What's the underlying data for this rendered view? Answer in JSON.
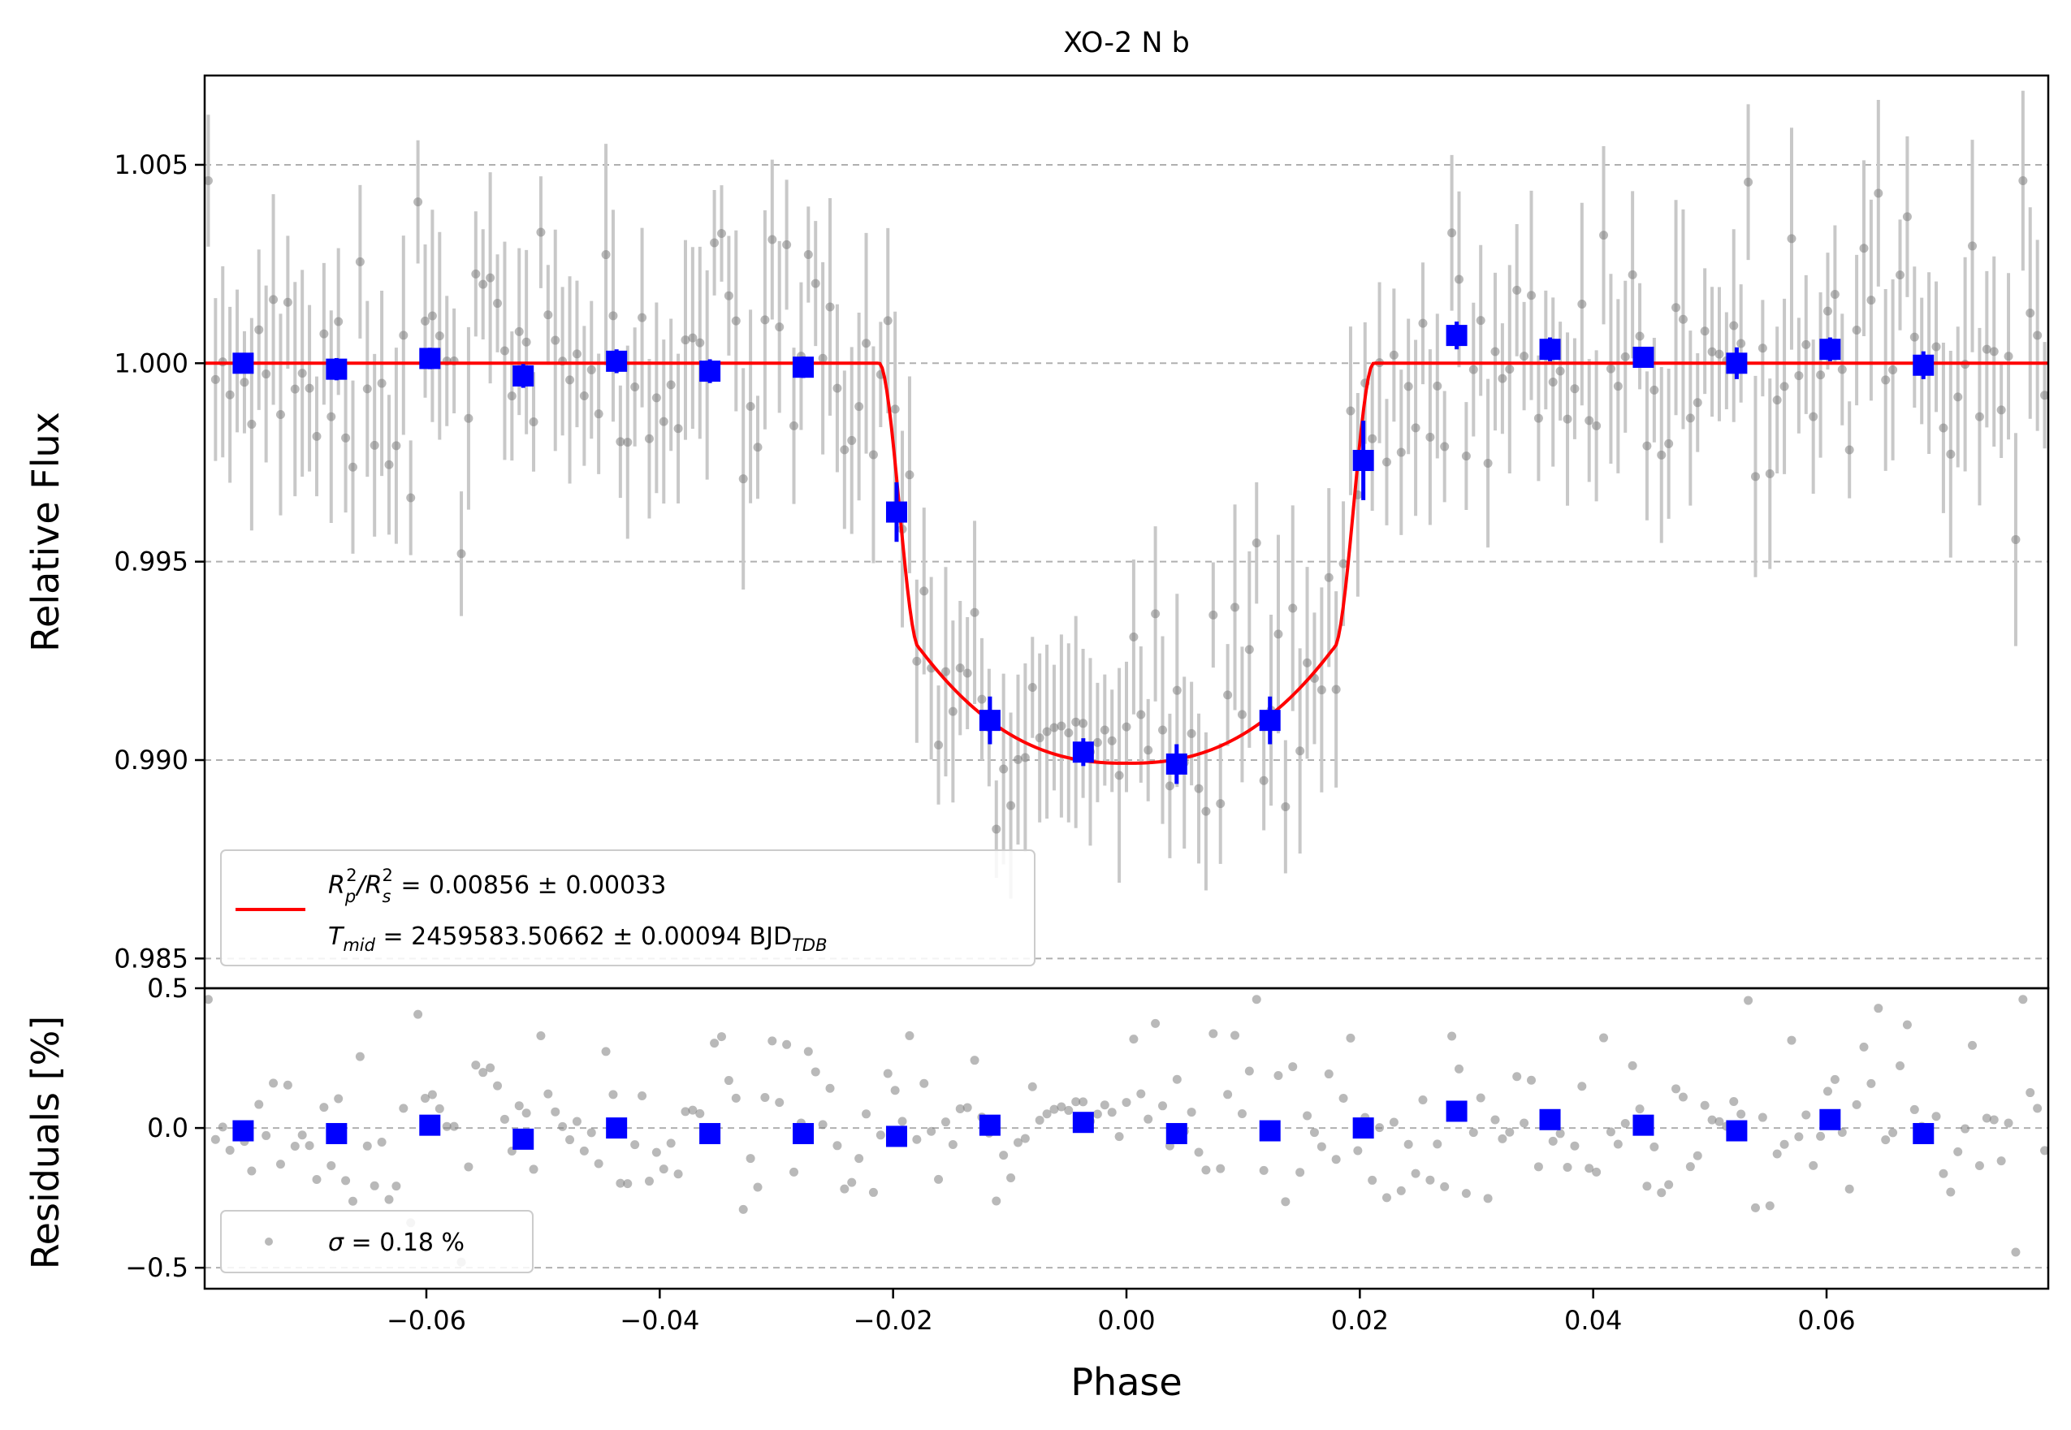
{
  "chart_data": [
    {
      "type": "scatter",
      "panel": "top",
      "title": "XO-2 N b",
      "xlabel": "",
      "ylabel": "Relative Flux",
      "xlim": [
        -0.079,
        0.079
      ],
      "ylim": [
        0.98425,
        1.00725
      ],
      "yticks": [
        0.985,
        0.99,
        0.995,
        1.0,
        1.005
      ],
      "ytick_labels": [
        "0.985",
        "0.990",
        "0.995",
        "1.000",
        "1.005"
      ],
      "grid": "horizontal-dashed",
      "colors": {
        "raw": "#808080",
        "raw_error": "#c8c8c8",
        "binned": "#0000ff",
        "model": "#ff0000"
      },
      "legend": {
        "placement": "lower-left",
        "line1": {
          "sym": "R",
          "sub1": "p",
          "sup1": "2",
          "mid": "/R",
          "sub2": "s",
          "sup2": "2",
          "rest": " = 0.00856 ± 0.00033"
        },
        "line2": {
          "sym": "T",
          "sub": "mid",
          "rest": " = 2459583.50662 ± 0.00094 BJD",
          "unit_sub": "TDB"
        }
      },
      "model": {
        "depth": 0.00856,
        "baseline": 1.0,
        "t14": 0.0424,
        "t23": 0.0355,
        "min_flux": 0.98992
      },
      "binned": [
        {
          "x": -0.0757,
          "y": 1.0,
          "err": 0.00025
        },
        {
          "x": -0.0677,
          "y": 0.99985,
          "err": 0.00028
        },
        {
          "x": -0.0597,
          "y": 1.00012,
          "err": 0.00027
        },
        {
          "x": -0.0517,
          "y": 0.99968,
          "err": 0.0003
        },
        {
          "x": -0.0437,
          "y": 1.00005,
          "err": 0.0003
        },
        {
          "x": -0.0357,
          "y": 0.9998,
          "err": 0.0003
        },
        {
          "x": -0.0277,
          "y": 0.9999,
          "err": 0.00027
        },
        {
          "x": -0.0197,
          "y": 0.99625,
          "err": 0.00075
        },
        {
          "x": -0.0117,
          "y": 0.991,
          "err": 0.0006
        },
        {
          "x": -0.0037,
          "y": 0.9902,
          "err": 0.00035
        },
        {
          "x": 0.0043,
          "y": 0.9899,
          "err": 0.0005
        },
        {
          "x": 0.0123,
          "y": 0.991,
          "err": 0.0006
        },
        {
          "x": 0.0203,
          "y": 0.99755,
          "err": 0.001
        },
        {
          "x": 0.0283,
          "y": 1.0007,
          "err": 0.00035
        },
        {
          "x": 0.0363,
          "y": 1.00035,
          "err": 0.0003
        },
        {
          "x": 0.0443,
          "y": 1.00015,
          "err": 0.00025
        },
        {
          "x": 0.0523,
          "y": 1.0,
          "err": 0.0004
        },
        {
          "x": 0.0603,
          "y": 1.00035,
          "err": 0.0003
        },
        {
          "x": 0.0683,
          "y": 0.99995,
          "err": 0.00035
        }
      ]
    },
    {
      "type": "scatter",
      "panel": "bottom",
      "title": "",
      "xlabel": "Phase",
      "ylabel": "Residuals [%]",
      "xlim": [
        -0.079,
        0.079
      ],
      "ylim": [
        -0.575,
        0.5
      ],
      "xticks": [
        -0.06,
        -0.04,
        -0.02,
        0.0,
        0.02,
        0.04,
        0.06
      ],
      "xtick_labels": [
        "−0.06",
        "−0.04",
        "−0.02",
        "0.00",
        "0.02",
        "0.04",
        "0.06"
      ],
      "yticks": [
        -0.5,
        0.0,
        0.5
      ],
      "ytick_labels": [
        "−0.5",
        "0.0",
        "0.5"
      ],
      "grid": "horizontal-dashed",
      "legend": {
        "placement": "lower-left",
        "sym": "σ",
        "rest": " = 0.18 %"
      },
      "sigma_percent": 0.18,
      "n_raw_points": 255,
      "binned": [
        {
          "x": -0.0757,
          "y": -0.01
        },
        {
          "x": -0.0677,
          "y": -0.02
        },
        {
          "x": -0.0597,
          "y": 0.01
        },
        {
          "x": -0.0517,
          "y": -0.04
        },
        {
          "x": -0.0437,
          "y": 0.0
        },
        {
          "x": -0.0357,
          "y": -0.02
        },
        {
          "x": -0.0277,
          "y": -0.02
        },
        {
          "x": -0.0197,
          "y": -0.03
        },
        {
          "x": -0.0117,
          "y": 0.01
        },
        {
          "x": -0.0037,
          "y": 0.02
        },
        {
          "x": 0.0043,
          "y": -0.02
        },
        {
          "x": 0.0123,
          "y": -0.01
        },
        {
          "x": 0.0203,
          "y": 0.0
        },
        {
          "x": 0.0283,
          "y": 0.06
        },
        {
          "x": 0.0363,
          "y": 0.03
        },
        {
          "x": 0.0443,
          "y": 0.01
        },
        {
          "x": 0.0523,
          "y": -0.01
        },
        {
          "x": 0.0603,
          "y": 0.03
        },
        {
          "x": 0.0683,
          "y": -0.02
        }
      ]
    }
  ]
}
